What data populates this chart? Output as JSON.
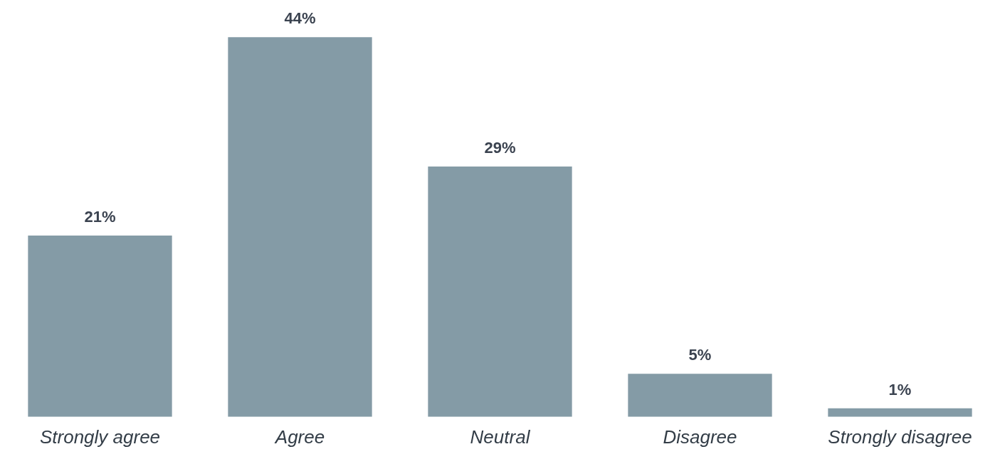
{
  "chart_data": {
    "type": "bar",
    "categories": [
      "Strongly agree",
      "Agree",
      "Neutral",
      "Disagree",
      "Strongly disagree"
    ],
    "values": [
      21,
      44,
      29,
      5,
      1
    ],
    "value_labels": [
      "21%",
      "44%",
      "29%",
      "5%",
      "1%"
    ],
    "color": "#849ba6",
    "grid": false,
    "tick_labels": "x"
  }
}
